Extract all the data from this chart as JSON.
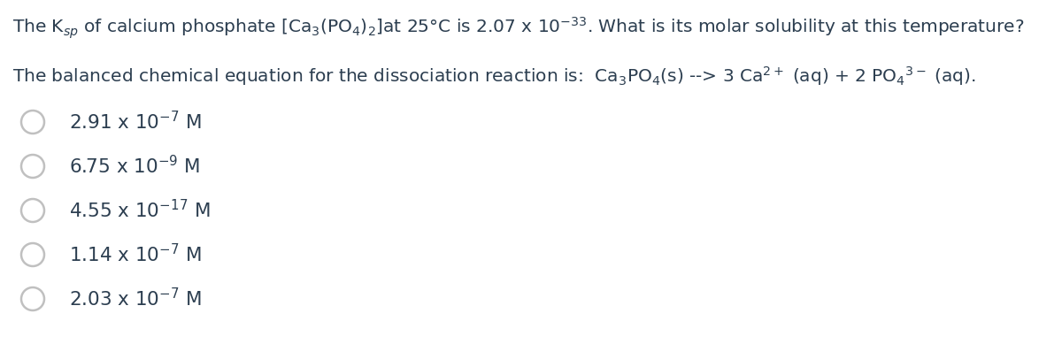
{
  "title_line1": "The K$_{sp}$ of calcium phosphate [Ca$_3$(PO$_4$)$_2$]at 25°C is 2.07 x 10$^{-33}$. What is its molar solubility at this temperature?",
  "title_line2": "The balanced chemical equation for the dissociation reaction is:  Ca$_3$PO$_4$(s) --> 3 Ca$^{2+}$ (aq) + 2 PO$_4$$^{3-}$ (aq).",
  "options": [
    "2.91 x 10$^{-7}$ M",
    "6.75 x 10$^{-9}$ M",
    "4.55 x 10$^{-17}$ M",
    "1.14 x 10$^{-7}$ M",
    "2.03 x 10$^{-7}$ M"
  ],
  "bg_color": "#ffffff",
  "text_color": "#2c3e50",
  "font_size_title": 14.5,
  "font_size_options": 15.5,
  "circle_color": "#c0c0c0",
  "circle_linewidth": 1.8,
  "fig_width": 12.0,
  "fig_height": 3.89,
  "dpi": 100
}
